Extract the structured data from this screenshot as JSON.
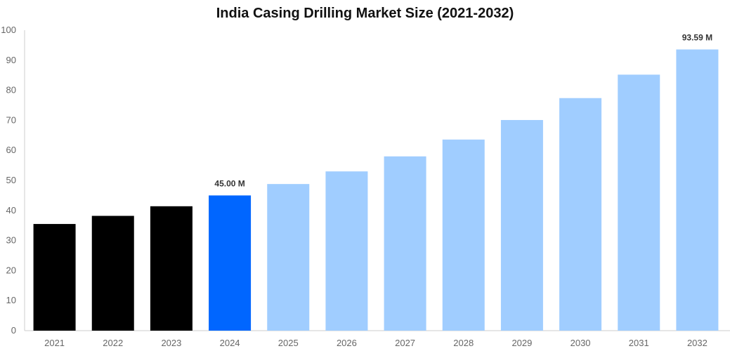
{
  "title": "India Casing Drilling Market Size (2021-2032)",
  "colors": {
    "historical": "#000000",
    "current": "#0066ff",
    "forecast": "#a0cdff",
    "axis": "#cccccc"
  },
  "chart_data": {
    "type": "bar",
    "title": "India Casing Drilling Market Size (2021-2032)",
    "xlabel": "",
    "ylabel": "",
    "ylim": [
      0,
      100
    ],
    "yticks": [
      0,
      10,
      20,
      30,
      40,
      50,
      60,
      70,
      80,
      90,
      100
    ],
    "grid": false,
    "categories": [
      "2021",
      "2022",
      "2023",
      "2024",
      "2025",
      "2026",
      "2027",
      "2028",
      "2029",
      "2030",
      "2031",
      "2032"
    ],
    "values": [
      35.5,
      38.2,
      41.4,
      45.0,
      48.8,
      53.0,
      58.0,
      63.6,
      70.1,
      77.4,
      85.2,
      93.59
    ],
    "bar_kind": [
      "historical",
      "historical",
      "historical",
      "current",
      "forecast",
      "forecast",
      "forecast",
      "forecast",
      "forecast",
      "forecast",
      "forecast",
      "forecast"
    ],
    "data_labels": [
      {
        "category": "2024",
        "text": "45.00 M"
      },
      {
        "category": "2032",
        "text": "93.59 M"
      }
    ]
  }
}
